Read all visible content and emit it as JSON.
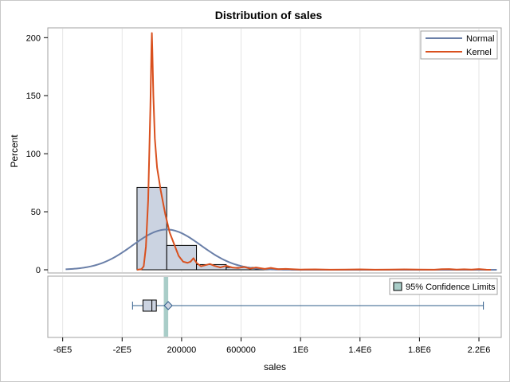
{
  "chart_data": {
    "type": "histogram",
    "title": "Distribution of sales",
    "xlabel": "sales",
    "ylabel": "Percent",
    "xlim": [
      -700000,
      2350000
    ],
    "ylim": [
      0,
      205
    ],
    "x_ticks": [
      {
        "value": -600000,
        "label": "-6E5"
      },
      {
        "value": -200000,
        "label": "-2E5"
      },
      {
        "value": 200000,
        "label": "200000"
      },
      {
        "value": 600000,
        "label": "600000"
      },
      {
        "value": 1000000,
        "label": "1E6"
      },
      {
        "value": 1400000,
        "label": "1.4E6"
      },
      {
        "value": 1800000,
        "label": "1.8E6"
      },
      {
        "value": 2200000,
        "label": "2.2E6"
      }
    ],
    "y_ticks": [
      0,
      50,
      100,
      150,
      200
    ],
    "grid": true,
    "legend_placement": "top-right",
    "bars": [
      {
        "x0": -100000,
        "x1": 100000,
        "percent": 71
      },
      {
        "x0": 100000,
        "x1": 300000,
        "percent": 21
      },
      {
        "x0": 300000,
        "x1": 500000,
        "percent": 4.5
      },
      {
        "x0": 500000,
        "x1": 700000,
        "percent": 2
      },
      {
        "x0": 700000,
        "x1": 900000,
        "percent": 0.8
      }
    ],
    "series": [
      {
        "name": "Normal",
        "color": "#6a7fa8",
        "mean": 100000,
        "std": 230000,
        "bin_width": 200000,
        "x_range": [
          -580000,
          2320000
        ]
      },
      {
        "name": "Kernel",
        "color": "#d9501e",
        "points": [
          [
            -100000,
            0
          ],
          [
            -70000,
            0.5
          ],
          [
            -55000,
            3
          ],
          [
            -40000,
            20
          ],
          [
            -25000,
            60
          ],
          [
            -10000,
            140
          ],
          [
            -3000,
            190
          ],
          [
            0,
            204
          ],
          [
            3000,
            190
          ],
          [
            10000,
            150
          ],
          [
            20000,
            113
          ],
          [
            35000,
            88
          ],
          [
            60000,
            68
          ],
          [
            90000,
            48
          ],
          [
            120000,
            32
          ],
          [
            150000,
            22
          ],
          [
            180000,
            12
          ],
          [
            210000,
            7
          ],
          [
            240000,
            6
          ],
          [
            260000,
            7
          ],
          [
            280000,
            10
          ],
          [
            300000,
            6
          ],
          [
            330000,
            3
          ],
          [
            360000,
            4
          ],
          [
            390000,
            5
          ],
          [
            420000,
            3.5
          ],
          [
            460000,
            2
          ],
          [
            500000,
            3.5
          ],
          [
            540000,
            2
          ],
          [
            580000,
            1.5
          ],
          [
            620000,
            2.5
          ],
          [
            660000,
            1
          ],
          [
            700000,
            2
          ],
          [
            760000,
            0.8
          ],
          [
            800000,
            1.6
          ],
          [
            850000,
            0.5
          ],
          [
            900000,
            0.8
          ],
          [
            1000000,
            0.2
          ],
          [
            1100000,
            0.3
          ],
          [
            1200000,
            0.1
          ],
          [
            1300000,
            0.2
          ],
          [
            1400000,
            0.3
          ],
          [
            1500000,
            0.1
          ],
          [
            1600000,
            0.2
          ],
          [
            1700000,
            0.3
          ],
          [
            1800000,
            0.2
          ],
          [
            1900000,
            0.1
          ],
          [
            1950000,
            0.5
          ],
          [
            2000000,
            0.6
          ],
          [
            2050000,
            0.2
          ],
          [
            2100000,
            0.4
          ],
          [
            2150000,
            0.2
          ],
          [
            2200000,
            0.6
          ],
          [
            2250000,
            0.1
          ],
          [
            2280000,
            0
          ]
        ]
      }
    ],
    "boxplot": {
      "min": -130000,
      "q1": -60000,
      "median": 0,
      "q3": 30000,
      "mean": 110000,
      "max": 2230000,
      "ci_lower": 80000,
      "ci_upper": 110000,
      "ci_color": "#a9cdc8",
      "legend_label": "95% Confidence Limits"
    },
    "colors": {
      "bar_fill": "#cbd3e1",
      "bar_stroke": "#000000",
      "grid": "#e6e6e6",
      "axis": "#a0a0a0",
      "box_line": "#2e5c8a"
    }
  }
}
